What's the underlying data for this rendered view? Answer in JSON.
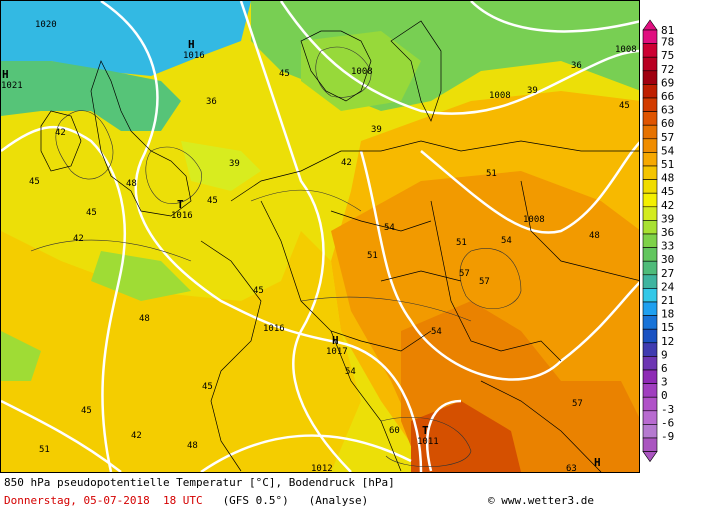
{
  "legend": {
    "values": [
      "81",
      "78",
      "75",
      "72",
      "69",
      "66",
      "63",
      "60",
      "57",
      "54",
      "51",
      "48",
      "45",
      "42",
      "39",
      "36",
      "33",
      "30",
      "27",
      "24",
      "21",
      "18",
      "15",
      "12",
      "9",
      "6",
      "3",
      "0",
      "-3",
      "-6",
      "-9"
    ],
    "colors": [
      "#e01080",
      "#cc0033",
      "#b80022",
      "#a00010",
      "#bf1f00",
      "#d23b00",
      "#df5400",
      "#e67200",
      "#ef8c00",
      "#f6a800",
      "#f4c400",
      "#f0dc00",
      "#f3f000",
      "#d3eb1f",
      "#a8e132",
      "#7ed24a",
      "#62c65f",
      "#4fbb7a",
      "#3fb4a0",
      "#33c8e8",
      "#1fa0f0",
      "#1873d8",
      "#1a52c2",
      "#3f3bb0",
      "#6d36b3",
      "#8e2bb5",
      "#a03fbf",
      "#b052c8",
      "#b86bd0",
      "#b57ad0",
      "#aa55c0"
    ]
  },
  "labels": {
    "h1": "H",
    "h1v": "1016",
    "h2": "H",
    "h2v": "1021",
    "h3": "H",
    "h3v": "1017",
    "h4": "H",
    "t1": "T",
    "t1v": "1016",
    "t2": "T",
    "t2v": "1011",
    "i1020": "1020",
    "i1008a": "1008",
    "i1008b": "1008",
    "i1008c": "1008",
    "i1008d": "1008",
    "i1012": "1012",
    "i1016": "1016",
    "c45a": "45",
    "c45b": "45",
    "c45c": "45",
    "c45d": "45",
    "c45e": "45",
    "c45f": "45",
    "c45g": "45",
    "c45h": "45",
    "c48a": "48",
    "c48b": "48",
    "c48c": "48",
    "c48d": "48",
    "c51a": "51",
    "c51b": "51",
    "c51c": "51",
    "c51d": "51",
    "c54a": "54",
    "c54b": "54",
    "c54c": "54",
    "c54d": "54",
    "c57a": "57",
    "c57b": "57",
    "c57c": "57",
    "c42a": "42",
    "c42b": "42",
    "c42c": "42",
    "c42d": "42",
    "c39a": "39",
    "c39b": "39",
    "c39c": "39",
    "c36a": "36",
    "c36b": "36",
    "c60": "60",
    "c63": "63"
  },
  "footer": {
    "title": "850 hPa pseudopotentielle Temperatur [°C], Bodendruck [hPa]",
    "date": "Donnerstag, 05-07-2018  18 UTC",
    "model": "(GFS 0.5°)",
    "analysis": "(Analyse)",
    "copyright": "© www.wetter3.de"
  }
}
